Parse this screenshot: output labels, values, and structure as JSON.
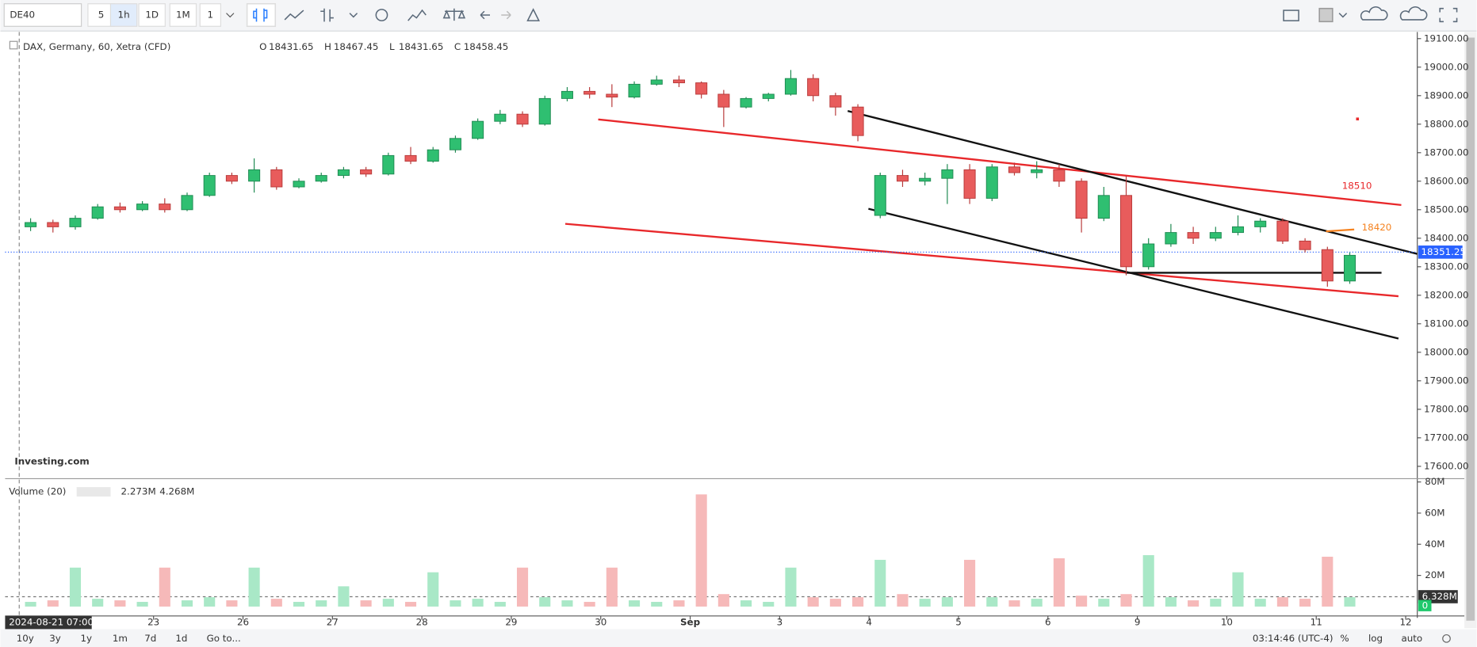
{
  "toolbar": {
    "symbol": "DE40",
    "intervals": [
      "5",
      "1h",
      "1D",
      "1M",
      "1"
    ]
  },
  "header": {
    "title": "DAX, Germany, 60, Xetra (CFD)",
    "ohlc": [
      {
        "label": "O",
        "value": "18431.65"
      },
      {
        "label": "H",
        "value": "18467.45"
      },
      {
        "label": "L",
        "value": "18431.65"
      },
      {
        "label": "C",
        "value": "18458.45"
      }
    ]
  },
  "logo": "Investing.com",
  "chart_data": {
    "type": "candlestick",
    "up_color": "#2fbf71",
    "down_color": "#e85c5c",
    "volume_up_color": "#a9e8c7",
    "volume_down_color": "#f6b9b9",
    "xlim": [
      -0.66,
      15.13
    ],
    "xticks": [
      {
        "value": 1,
        "label": "23"
      },
      {
        "value": 2,
        "label": "26"
      },
      {
        "value": 3,
        "label": "27"
      },
      {
        "value": 4,
        "label": "28"
      },
      {
        "value": 5,
        "label": "29"
      },
      {
        "value": 6,
        "label": "30"
      },
      {
        "value": 7,
        "label": "Sep"
      },
      {
        "value": 8,
        "label": "3"
      },
      {
        "value": 9,
        "label": "4"
      },
      {
        "value": 10,
        "label": "5"
      },
      {
        "value": 11,
        "label": "6"
      },
      {
        "value": 12,
        "label": "9"
      },
      {
        "value": 13,
        "label": "10"
      },
      {
        "value": 14,
        "label": "11"
      },
      {
        "value": 15,
        "label": "12"
      }
    ],
    "x_cursor_label": "2024-08-21 07:00:00",
    "ylim": [
      17560,
      19120
    ],
    "yticks": [
      {
        "value": 17600,
        "label": "17600.00"
      },
      {
        "value": 17700,
        "label": "17700.00"
      },
      {
        "value": 17800,
        "label": "17800.00"
      },
      {
        "value": 17900,
        "label": "17900.00"
      },
      {
        "value": 18000,
        "label": "18000.00"
      },
      {
        "value": 18100,
        "label": "18100.00"
      },
      {
        "value": 18200,
        "label": "18200.00"
      },
      {
        "value": 18300,
        "label": "18300.00"
      },
      {
        "value": 18400,
        "label": "18400.00"
      },
      {
        "value": 18500,
        "label": "18500.00"
      },
      {
        "value": 18600,
        "label": "18600.00"
      },
      {
        "value": 18700,
        "label": "18700.00"
      },
      {
        "value": 18800,
        "label": "18800.00"
      },
      {
        "value": 18900,
        "label": "18900.00"
      },
      {
        "value": 19000,
        "label": "19000.00"
      },
      {
        "value": 19100,
        "label": "19100.00"
      }
    ],
    "last_price": {
      "value": 18351.25,
      "label": "18351.25"
    },
    "annotations": [
      {
        "text": "18510",
        "color": "#e8282b"
      },
      {
        "text": "18420",
        "color": "#f5821f"
      }
    ],
    "volume_title": "Volume (20)",
    "volume_legend": [
      "2.273M",
      "4.268M"
    ],
    "volume_ylim": [
      0,
      81.5
    ],
    "volume_ticks": [
      {
        "value": 20,
        "label": "20M"
      },
      {
        "value": 40,
        "label": "40M"
      },
      {
        "value": 60,
        "label": "60M"
      },
      {
        "value": 80,
        "label": "80M"
      }
    ],
    "volume_ma": {
      "value": 6.328,
      "label": "6.328M"
    },
    "volume_current": 0,
    "candles": [
      {
        "x": -0.375,
        "open": 18440,
        "high": 18470,
        "low": 18425,
        "close": 18455,
        "volume": 3
      },
      {
        "x": -0.125,
        "open": 18455,
        "high": 18465,
        "low": 18420,
        "close": 18440,
        "volume": 4
      },
      {
        "x": 0.125,
        "open": 18440,
        "high": 18480,
        "low": 18430,
        "close": 18470,
        "volume": 25
      },
      {
        "x": 0.375,
        "open": 18470,
        "high": 18520,
        "low": 18465,
        "close": 18510,
        "volume": 5
      },
      {
        "x": 0.625,
        "open": 18510,
        "high": 18525,
        "low": 18490,
        "close": 18500,
        "volume": 4
      },
      {
        "x": 0.875,
        "open": 18500,
        "high": 18530,
        "low": 18495,
        "close": 18520,
        "volume": 3
      },
      {
        "x": 1.125,
        "open": 18520,
        "high": 18540,
        "low": 18490,
        "close": 18500,
        "volume": 25
      },
      {
        "x": 1.375,
        "open": 18500,
        "high": 18560,
        "low": 18495,
        "close": 18550,
        "volume": 4
      },
      {
        "x": 1.625,
        "open": 18550,
        "high": 18630,
        "low": 18545,
        "close": 18620,
        "volume": 6
      },
      {
        "x": 1.875,
        "open": 18620,
        "high": 18630,
        "low": 18590,
        "close": 18600,
        "volume": 4
      },
      {
        "x": 2.125,
        "open": 18600,
        "high": 18680,
        "low": 18560,
        "close": 18640,
        "volume": 25
      },
      {
        "x": 2.375,
        "open": 18640,
        "high": 18650,
        "low": 18570,
        "close": 18580,
        "volume": 5
      },
      {
        "x": 2.625,
        "open": 18580,
        "high": 18610,
        "low": 18575,
        "close": 18600,
        "volume": 3
      },
      {
        "x": 2.875,
        "open": 18600,
        "high": 18630,
        "low": 18595,
        "close": 18620,
        "volume": 4
      },
      {
        "x": 3.125,
        "open": 18620,
        "high": 18650,
        "low": 18610,
        "close": 18640,
        "volume": 13
      },
      {
        "x": 3.375,
        "open": 18640,
        "high": 18650,
        "low": 18615,
        "close": 18625,
        "volume": 4
      },
      {
        "x": 3.625,
        "open": 18625,
        "high": 18700,
        "low": 18620,
        "close": 18690,
        "volume": 5
      },
      {
        "x": 3.875,
        "open": 18690,
        "high": 18720,
        "low": 18660,
        "close": 18670,
        "volume": 3
      },
      {
        "x": 4.125,
        "open": 18670,
        "high": 18720,
        "low": 18665,
        "close": 18710,
        "volume": 22
      },
      {
        "x": 4.375,
        "open": 18710,
        "high": 18760,
        "low": 18700,
        "close": 18750,
        "volume": 4
      },
      {
        "x": 4.625,
        "open": 18750,
        "high": 18820,
        "low": 18745,
        "close": 18810,
        "volume": 5
      },
      {
        "x": 4.875,
        "open": 18810,
        "high": 18850,
        "low": 18800,
        "close": 18835,
        "volume": 3
      },
      {
        "x": 5.125,
        "open": 18835,
        "high": 18845,
        "low": 18790,
        "close": 18800,
        "volume": 25
      },
      {
        "x": 5.375,
        "open": 18800,
        "high": 18900,
        "low": 18795,
        "close": 18890,
        "volume": 6
      },
      {
        "x": 5.625,
        "open": 18890,
        "high": 18930,
        "low": 18880,
        "close": 18915,
        "volume": 4
      },
      {
        "x": 5.875,
        "open": 18915,
        "high": 18930,
        "low": 18890,
        "close": 18905,
        "volume": 3
      },
      {
        "x": 6.125,
        "open": 18905,
        "high": 18940,
        "low": 18860,
        "close": 18895,
        "volume": 25
      },
      {
        "x": 6.375,
        "open": 18895,
        "high": 18950,
        "low": 18890,
        "close": 18940,
        "volume": 4
      },
      {
        "x": 6.625,
        "open": 18940,
        "high": 18970,
        "low": 18935,
        "close": 18955,
        "volume": 3
      },
      {
        "x": 6.875,
        "open": 18955,
        "high": 18970,
        "low": 18930,
        "close": 18945,
        "volume": 4
      },
      {
        "x": 7.125,
        "open": 18945,
        "high": 18950,
        "low": 18890,
        "close": 18905,
        "volume": 72
      },
      {
        "x": 7.375,
        "open": 18905,
        "high": 18920,
        "low": 18790,
        "close": 18860,
        "volume": 8
      },
      {
        "x": 7.625,
        "open": 18860,
        "high": 18895,
        "low": 18855,
        "close": 18890,
        "volume": 4
      },
      {
        "x": 7.875,
        "open": 18890,
        "high": 18910,
        "low": 18880,
        "close": 18905,
        "volume": 3
      },
      {
        "x": 8.125,
        "open": 18905,
        "high": 18990,
        "low": 18900,
        "close": 18960,
        "volume": 25
      },
      {
        "x": 8.375,
        "open": 18960,
        "high": 18975,
        "low": 18880,
        "close": 18900,
        "volume": 6
      },
      {
        "x": 8.625,
        "open": 18900,
        "high": 18910,
        "low": 18830,
        "close": 18860,
        "volume": 5
      },
      {
        "x": 8.875,
        "open": 18860,
        "high": 18870,
        "low": 18740,
        "close": 18760,
        "volume": 6
      },
      {
        "x": 9.125,
        "open": 18480,
        "high": 18630,
        "low": 18470,
        "close": 18620,
        "volume": 30
      },
      {
        "x": 9.375,
        "open": 18620,
        "high": 18640,
        "low": 18580,
        "close": 18600,
        "volume": 8
      },
      {
        "x": 9.625,
        "open": 18600,
        "high": 18630,
        "low": 18585,
        "close": 18610,
        "volume": 5
      },
      {
        "x": 9.875,
        "open": 18610,
        "high": 18660,
        "low": 18520,
        "close": 18640,
        "volume": 6
      },
      {
        "x": 10.125,
        "open": 18640,
        "high": 18660,
        "low": 18520,
        "close": 18540,
        "volume": 30
      },
      {
        "x": 10.375,
        "open": 18540,
        "high": 18660,
        "low": 18530,
        "close": 18650,
        "volume": 6
      },
      {
        "x": 10.625,
        "open": 18650,
        "high": 18665,
        "low": 18620,
        "close": 18630,
        "volume": 4
      },
      {
        "x": 10.875,
        "open": 18630,
        "high": 18670,
        "low": 18610,
        "close": 18640,
        "volume": 5
      },
      {
        "x": 11.125,
        "open": 18640,
        "high": 18660,
        "low": 18580,
        "close": 18600,
        "volume": 31
      },
      {
        "x": 11.375,
        "open": 18600,
        "high": 18610,
        "low": 18420,
        "close": 18470,
        "volume": 7
      },
      {
        "x": 11.625,
        "open": 18470,
        "high": 18580,
        "low": 18460,
        "close": 18550,
        "volume": 5
      },
      {
        "x": 11.875,
        "open": 18550,
        "high": 18620,
        "low": 18270,
        "close": 18300,
        "volume": 8
      },
      {
        "x": 12.125,
        "open": 18300,
        "high": 18400,
        "low": 18290,
        "close": 18380,
        "volume": 33
      },
      {
        "x": 12.375,
        "open": 18380,
        "high": 18450,
        "low": 18370,
        "close": 18420,
        "volume": 6
      },
      {
        "x": 12.625,
        "open": 18420,
        "high": 18440,
        "low": 18380,
        "close": 18400,
        "volume": 4
      },
      {
        "x": 12.875,
        "open": 18400,
        "high": 18440,
        "low": 18390,
        "close": 18420,
        "volume": 5
      },
      {
        "x": 13.125,
        "open": 18420,
        "high": 18480,
        "low": 18410,
        "close": 18440,
        "volume": 22
      },
      {
        "x": 13.375,
        "open": 18440,
        "high": 18470,
        "low": 18420,
        "close": 18460,
        "volume": 5
      },
      {
        "x": 13.625,
        "open": 18460,
        "high": 18470,
        "low": 18380,
        "close": 18390,
        "volume": 6
      },
      {
        "x": 13.875,
        "open": 18390,
        "high": 18400,
        "low": 18350,
        "close": 18360,
        "volume": 5
      },
      {
        "x": 14.125,
        "open": 18360,
        "high": 18370,
        "low": 18230,
        "close": 18250,
        "volume": 32
      },
      {
        "x": 14.375,
        "open": 18250,
        "high": 18350,
        "low": 18240,
        "close": 18340,
        "volume": 6
      }
    ]
  },
  "footer": {
    "ranges": [
      "10y",
      "3y",
      "1y",
      "1m",
      "7d",
      "1d"
    ],
    "goto": "Go to...",
    "clock": "03:14:46 (UTC-4)",
    "options": [
      "%",
      "log",
      "auto"
    ]
  }
}
